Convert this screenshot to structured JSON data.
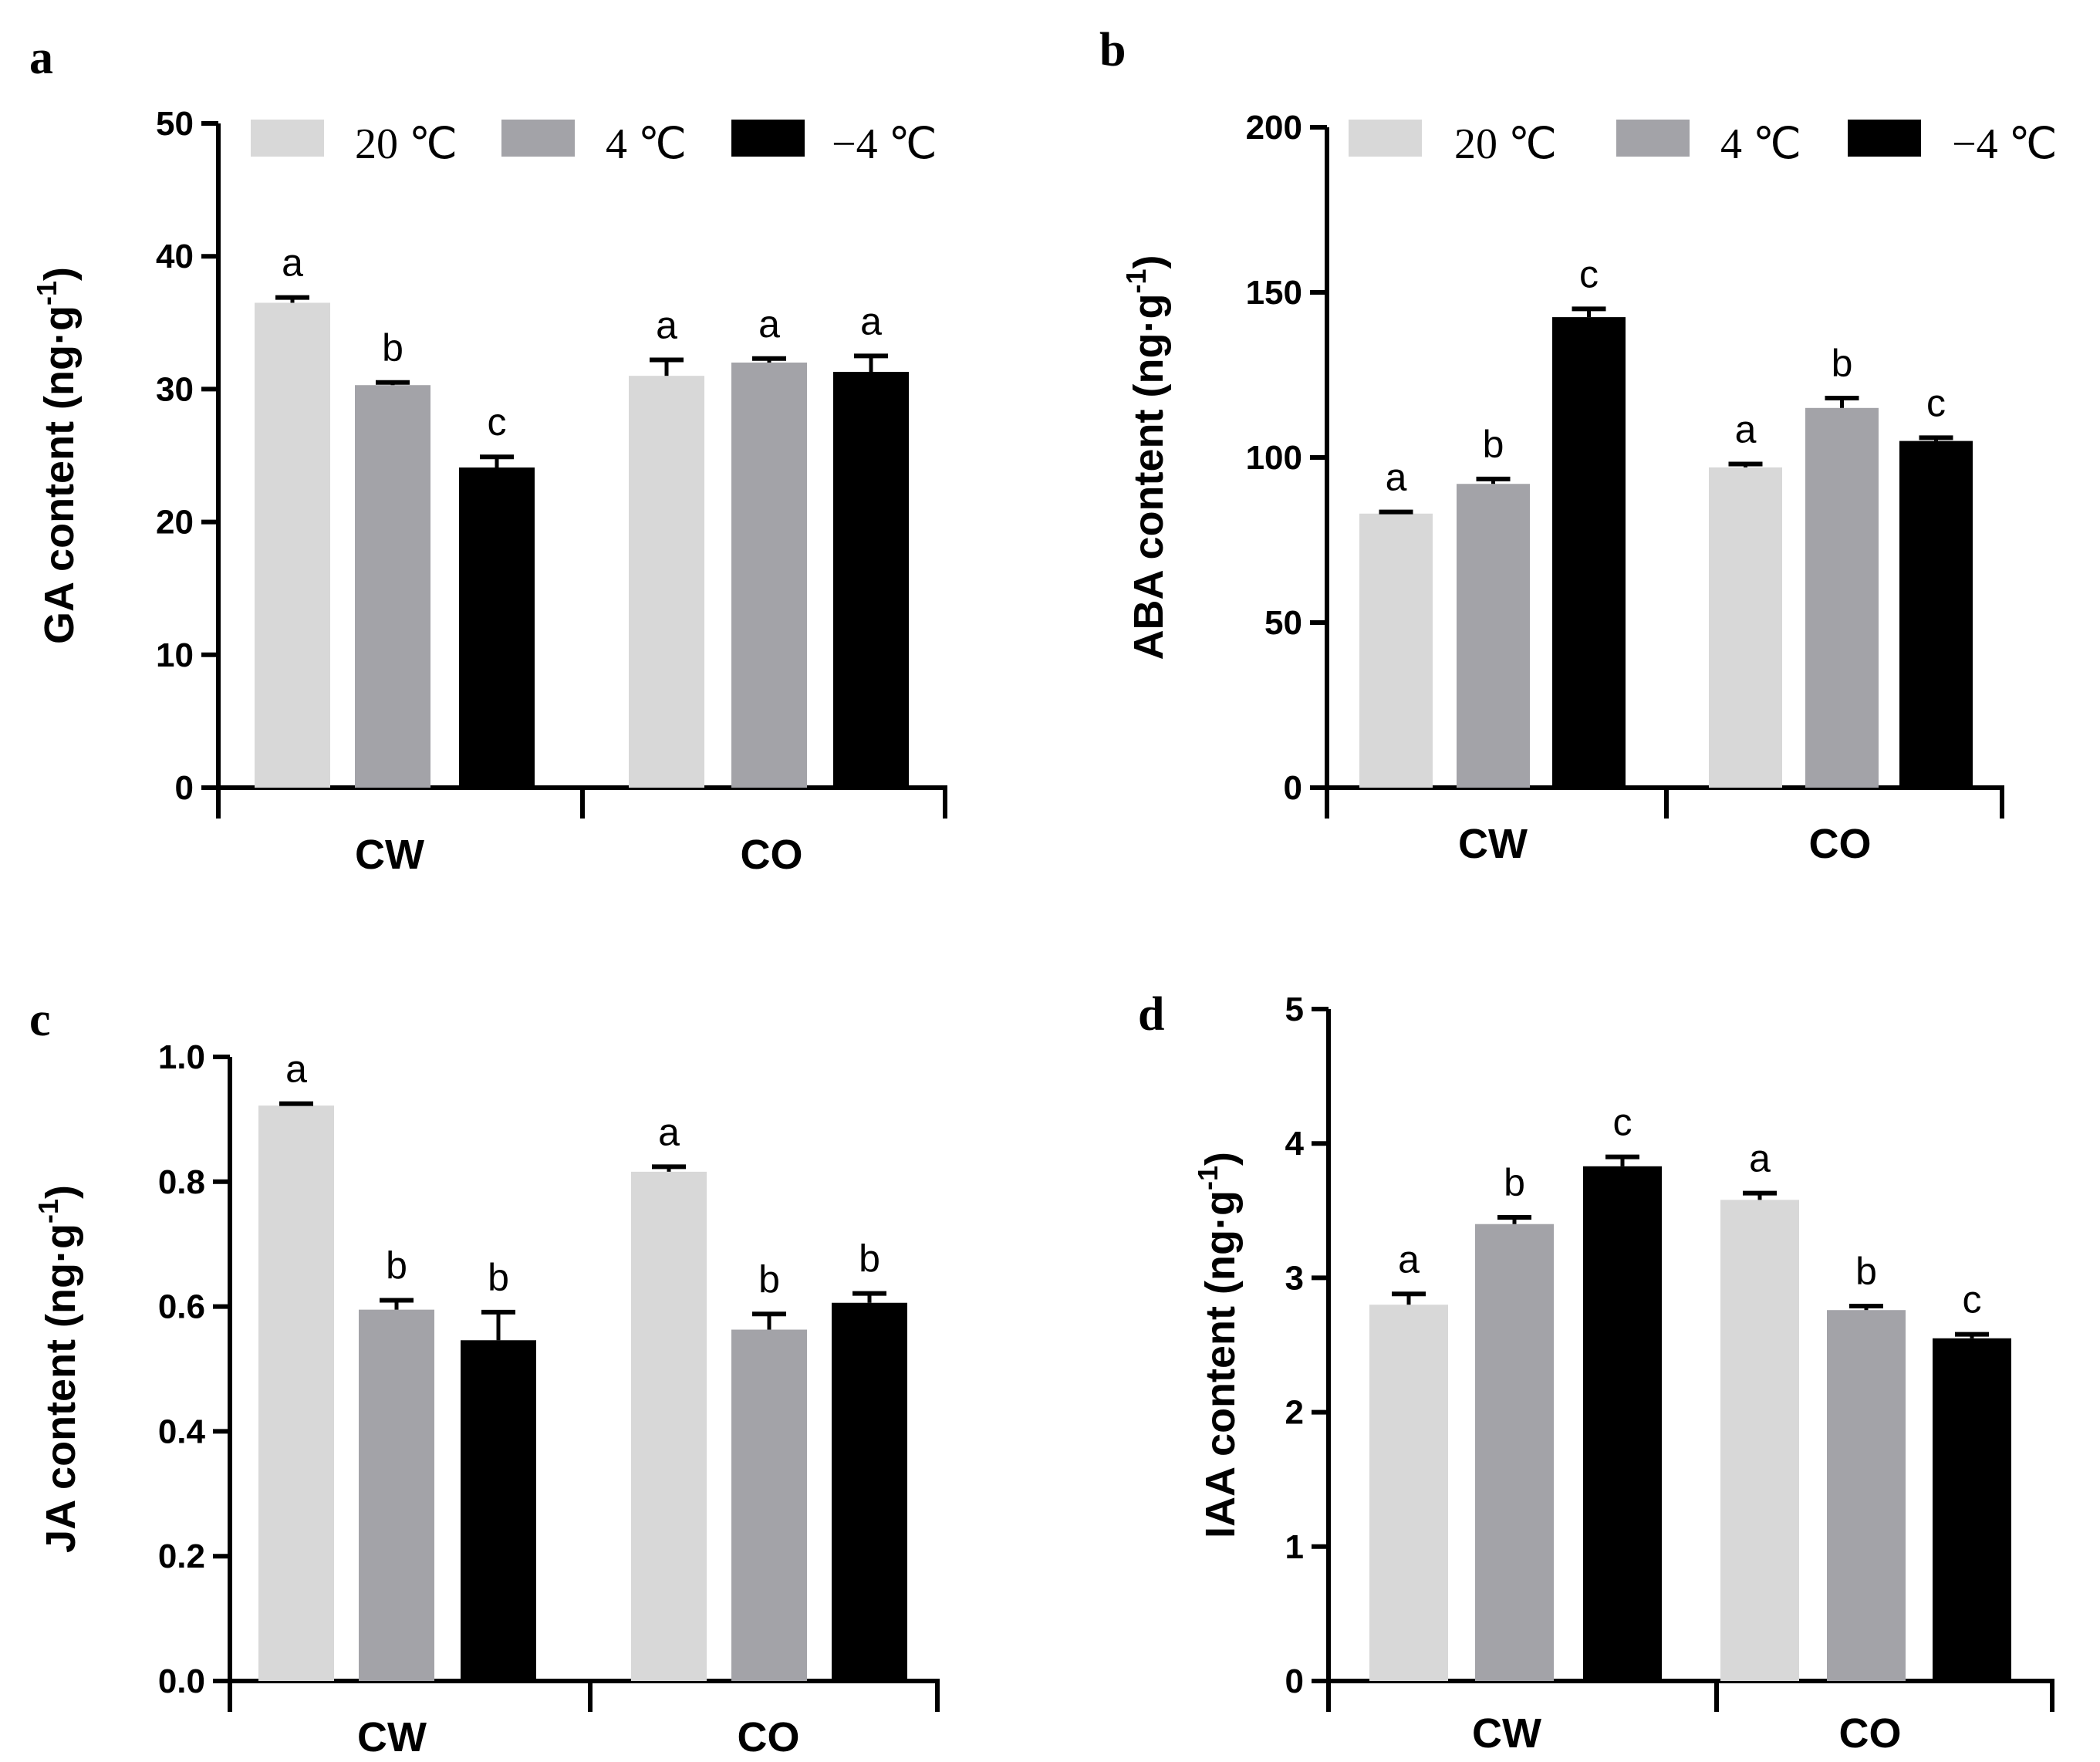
{
  "colors": {
    "20C": "#d8d8d8",
    "4C": "#a3a3a8",
    "-4C": "#000000",
    "axis": "#000000"
  },
  "legend": [
    "20 ℃",
    "4 ℃",
    "−4 ℃"
  ],
  "chart_data": [
    {
      "panel": "a",
      "type": "bar",
      "ylabel_main": "GA content (ng·g",
      "ylabel_sup": "-1",
      "ylabel_end": ")",
      "categories": [
        "CW",
        "CO"
      ],
      "ylim": [
        0,
        50
      ],
      "yticks": [
        "0",
        "10",
        "20",
        "30",
        "40",
        "50"
      ],
      "series": [
        {
          "name": "20 ℃",
          "values": [
            36.5,
            31.0
          ],
          "errors": [
            0.4,
            1.2
          ],
          "letters": [
            "a",
            "a"
          ]
        },
        {
          "name": "4 ℃",
          "values": [
            30.3,
            32.0
          ],
          "errors": [
            0.2,
            0.3
          ],
          "letters": [
            "b",
            "a"
          ]
        },
        {
          "name": "−4 ℃",
          "values": [
            24.1,
            31.3
          ],
          "errors": [
            0.8,
            1.2
          ],
          "letters": [
            "c",
            "a"
          ]
        }
      ],
      "legend_shown": true
    },
    {
      "panel": "b",
      "type": "bar",
      "ylabel_main": "ABA content (ng·g",
      "ylabel_sup": "-1",
      "ylabel_end": ")",
      "categories": [
        "CW",
        "CO"
      ],
      "ylim": [
        0,
        200
      ],
      "yticks": [
        "0",
        "50",
        "100",
        "150",
        "200"
      ],
      "series": [
        {
          "name": "20 ℃",
          "values": [
            83.0,
            97.0
          ],
          "errors": [
            0.5,
            1.0
          ],
          "letters": [
            "a",
            "a"
          ]
        },
        {
          "name": "4 ℃",
          "values": [
            92.0,
            115.0
          ],
          "errors": [
            1.5,
            3.0
          ],
          "letters": [
            "b",
            "b"
          ]
        },
        {
          "name": "−4 ℃",
          "values": [
            142.5,
            105.0
          ],
          "errors": [
            2.5,
            1.0
          ],
          "letters": [
            "c",
            "c"
          ]
        }
      ],
      "legend_shown": true
    },
    {
      "panel": "c",
      "type": "bar",
      "ylabel_main": "JA content (ng·g",
      "ylabel_sup": "-1",
      "ylabel_end": ")",
      "categories": [
        "CW",
        "CO"
      ],
      "ylim": [
        0,
        1.0
      ],
      "yticks": [
        "0.0",
        "0.2",
        "0.4",
        "0.6",
        "0.8",
        "1.0"
      ],
      "series": [
        {
          "name": "20 ℃",
          "values": [
            0.922,
            0.816
          ],
          "errors": [
            0.003,
            0.008
          ],
          "letters": [
            "a",
            "a"
          ]
        },
        {
          "name": "4 ℃",
          "values": [
            0.595,
            0.563
          ],
          "errors": [
            0.015,
            0.025
          ],
          "letters": [
            "b",
            "b"
          ]
        },
        {
          "name": "−4 ℃",
          "values": [
            0.546,
            0.606
          ],
          "errors": [
            0.045,
            0.015
          ],
          "letters": [
            "b",
            "b"
          ]
        }
      ],
      "legend_shown": false
    },
    {
      "panel": "d",
      "type": "bar",
      "ylabel_main": "IAA content (ng·g",
      "ylabel_sup": "-1",
      "ylabel_end": ")",
      "categories": [
        "CW",
        "CO"
      ],
      "ylim": [
        0,
        5
      ],
      "yticks": [
        "0",
        "1",
        "2",
        "3",
        "4",
        "5"
      ],
      "series": [
        {
          "name": "20 ℃",
          "values": [
            2.8,
            3.58
          ],
          "errors": [
            0.08,
            0.05
          ],
          "letters": [
            "a",
            "a"
          ]
        },
        {
          "name": "4 ℃",
          "values": [
            3.4,
            2.76
          ],
          "errors": [
            0.05,
            0.03
          ],
          "letters": [
            "b",
            "b"
          ]
        },
        {
          "name": "−4 ℃",
          "values": [
            3.83,
            2.55
          ],
          "errors": [
            0.07,
            0.03
          ],
          "letters": [
            "c",
            "c"
          ]
        }
      ],
      "legend_shown": false
    }
  ]
}
